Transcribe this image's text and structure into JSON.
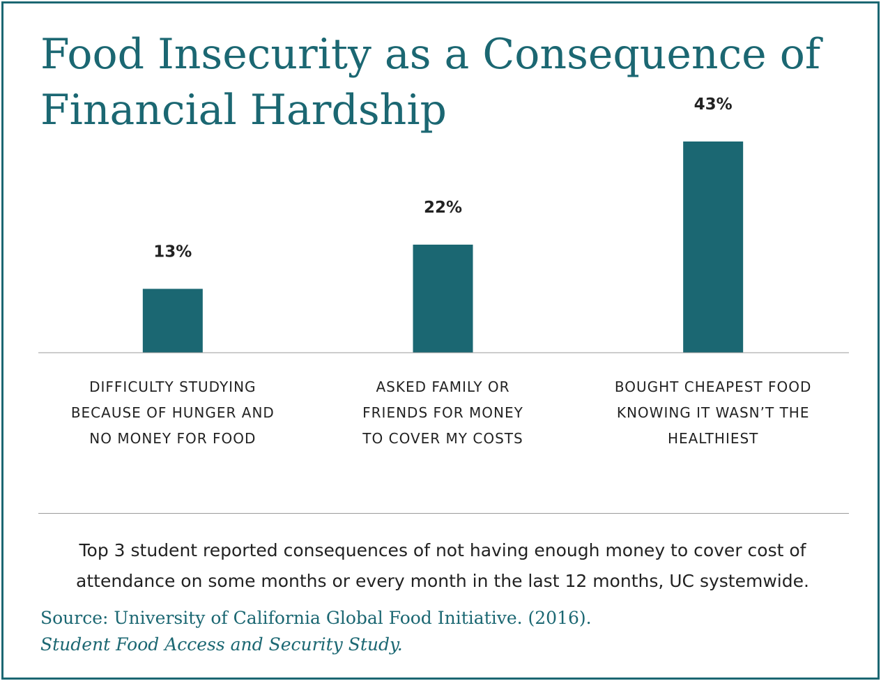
{
  "title_line1": "Food Insecurity as a Consequence of",
  "title_line2": "Financial Hardship",
  "colors": {
    "accent": "#1b6772",
    "text": "#222222",
    "axis": "#9a9a9a"
  },
  "chart_data": {
    "type": "bar",
    "title": "Food Insecurity as a Consequence of Financial Hardship",
    "categories": [
      [
        "DIFFICULTY STUDYING",
        "BECAUSE OF HUNGER AND",
        "NO MONEY FOR FOOD"
      ],
      [
        "ASKED FAMILY OR",
        "FRIENDS FOR MONEY",
        "TO COVER MY COSTS"
      ],
      [
        "BOUGHT CHEAPEST FOOD",
        "KNOWING IT WASN’T THE",
        "HEALTHIEST"
      ]
    ],
    "values": [
      13,
      22,
      43
    ],
    "value_labels": [
      "13%",
      "22%",
      "43%"
    ],
    "unit": "%",
    "ylim": [
      0,
      45
    ],
    "grid": false,
    "legend": "none"
  },
  "caption_line1": "Top 3 student reported consequences of not having enough money to cover cost of",
  "caption_line2": "attendance on some months or every month in the last 12 months, UC systemwide.",
  "source_prefix": "Source: University of California Global Food Initiative. (2016).",
  "source_title": "Student Food Access and Security Study."
}
